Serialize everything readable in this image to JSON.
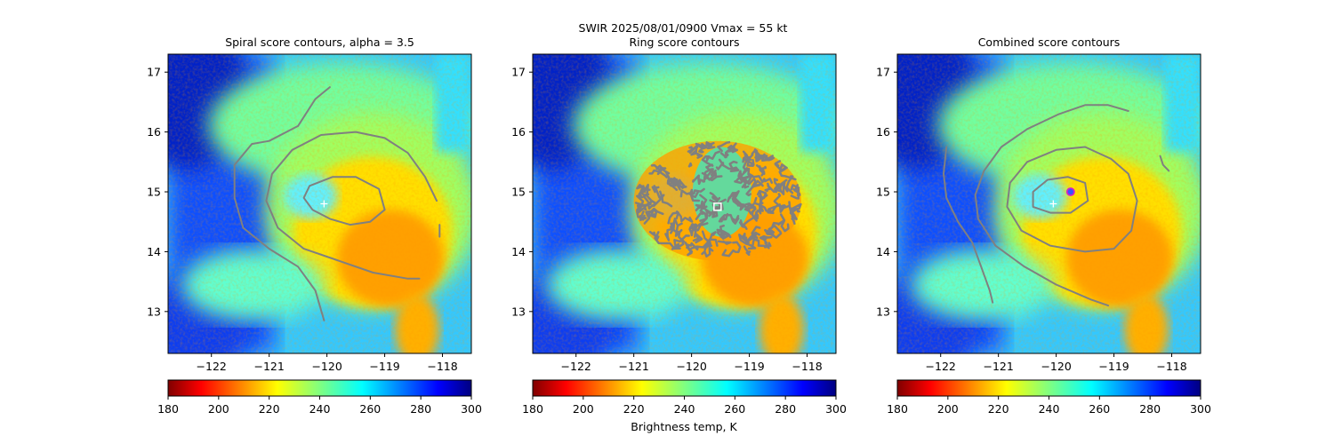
{
  "figure": {
    "suptitle_line1": "SWIR  2025/08/01/0900    Vmax = 55 kt",
    "colorbar_label": "Brightness temp, K"
  },
  "chart_data": [
    {
      "type": "heatmap",
      "title": "Spiral score contours, alpha =  3.5",
      "xlim": [
        -122.75,
        -117.5
      ],
      "ylim": [
        12.3,
        17.3
      ],
      "xticks": [
        -122,
        -121,
        -120,
        -119,
        -118
      ],
      "yticks": [
        13,
        14,
        15,
        16,
        17
      ],
      "center_marker": {
        "symbol": "plus",
        "lon": -120.05,
        "lat": 14.8
      },
      "contours": [
        [
          [
            -119.0,
            14.7
          ],
          [
            -119.1,
            15.05
          ],
          [
            -119.5,
            15.25
          ],
          [
            -119.9,
            15.25
          ],
          [
            -120.3,
            15.1
          ],
          [
            -120.4,
            14.9
          ],
          [
            -120.25,
            14.7
          ],
          [
            -119.95,
            14.55
          ],
          [
            -119.6,
            14.45
          ],
          [
            -119.25,
            14.5
          ],
          [
            -119.0,
            14.7
          ]
        ],
        [
          [
            -118.1,
            14.85
          ],
          [
            -118.3,
            15.25
          ],
          [
            -118.6,
            15.65
          ],
          [
            -119.0,
            15.9
          ],
          [
            -119.5,
            16.0
          ],
          [
            -120.1,
            15.95
          ],
          [
            -120.6,
            15.7
          ],
          [
            -120.95,
            15.3
          ],
          [
            -121.05,
            14.85
          ],
          [
            -120.85,
            14.4
          ],
          [
            -120.4,
            14.05
          ],
          [
            -119.8,
            13.85
          ],
          [
            -119.2,
            13.65
          ],
          [
            -118.6,
            13.55
          ],
          [
            -118.4,
            13.55
          ]
        ],
        [
          [
            -119.95,
            16.75
          ],
          [
            -120.2,
            16.55
          ],
          [
            -120.5,
            16.1
          ],
          [
            -121.0,
            15.85
          ],
          [
            -121.3,
            15.8
          ],
          [
            -121.6,
            15.45
          ],
          [
            -121.6,
            14.9
          ],
          [
            -121.45,
            14.4
          ],
          [
            -121.0,
            14.05
          ],
          [
            -120.5,
            13.75
          ],
          [
            -120.2,
            13.35
          ],
          [
            -120.05,
            12.85
          ]
        ],
        [
          [
            -118.05,
            14.45
          ],
          [
            -118.05,
            14.25
          ]
        ]
      ]
    },
    {
      "type": "heatmap",
      "title": "Ring score contours",
      "xlim": [
        -122.75,
        -117.5
      ],
      "ylim": [
        12.3,
        17.3
      ],
      "xticks": [
        -122,
        -121,
        -120,
        -119,
        -118
      ],
      "yticks": [
        13,
        14,
        15,
        16,
        17
      ],
      "center_marker": {
        "symbol": "square",
        "lon": -119.55,
        "lat": 14.75
      },
      "contour_region": {
        "lon": -119.55,
        "lat": 14.85,
        "rlon": 1.45,
        "rlat": 1.0
      }
    },
    {
      "type": "heatmap",
      "title": "Combined score contours",
      "xlim": [
        -122.75,
        -117.5
      ],
      "ylim": [
        12.3,
        17.3
      ],
      "xticks": [
        -122,
        -121,
        -120,
        -119,
        -118
      ],
      "yticks": [
        13,
        14,
        15,
        16,
        17
      ],
      "center_marker": {
        "symbol": "plus",
        "lon": -120.05,
        "lat": 14.8
      },
      "best_marker": {
        "symbol": "circle",
        "lon": -119.75,
        "lat": 15.0
      },
      "contours": [
        [
          [
            -119.45,
            14.85
          ],
          [
            -119.5,
            15.15
          ],
          [
            -119.8,
            15.25
          ],
          [
            -120.15,
            15.2
          ],
          [
            -120.4,
            15.0
          ],
          [
            -120.4,
            14.75
          ],
          [
            -120.1,
            14.65
          ],
          [
            -119.75,
            14.65
          ],
          [
            -119.45,
            14.85
          ]
        ],
        [
          [
            -118.6,
            14.85
          ],
          [
            -118.75,
            15.3
          ],
          [
            -119.05,
            15.55
          ],
          [
            -119.5,
            15.75
          ],
          [
            -120.0,
            15.7
          ],
          [
            -120.5,
            15.5
          ],
          [
            -120.8,
            15.15
          ],
          [
            -120.85,
            14.75
          ],
          [
            -120.6,
            14.35
          ],
          [
            -120.1,
            14.1
          ],
          [
            -119.5,
            14.0
          ],
          [
            -119.0,
            14.05
          ],
          [
            -118.7,
            14.35
          ],
          [
            -118.6,
            14.85
          ]
        ],
        [
          [
            -118.75,
            16.35
          ],
          [
            -119.1,
            16.45
          ],
          [
            -119.5,
            16.45
          ],
          [
            -119.95,
            16.3
          ],
          [
            -120.5,
            16.05
          ],
          [
            -120.95,
            15.75
          ],
          [
            -121.25,
            15.35
          ],
          [
            -121.4,
            14.95
          ],
          [
            -121.35,
            14.55
          ],
          [
            -121.05,
            14.1
          ],
          [
            -120.55,
            13.75
          ],
          [
            -120.0,
            13.45
          ],
          [
            -119.4,
            13.2
          ],
          [
            -119.1,
            13.1
          ]
        ],
        [
          [
            -121.9,
            15.75
          ],
          [
            -121.95,
            15.3
          ],
          [
            -121.9,
            14.9
          ],
          [
            -121.7,
            14.5
          ],
          [
            -121.45,
            14.15
          ],
          [
            -121.3,
            13.75
          ],
          [
            -121.15,
            13.35
          ],
          [
            -121.1,
            13.15
          ]
        ],
        [
          [
            -118.2,
            15.6
          ],
          [
            -118.15,
            15.45
          ],
          [
            -118.05,
            15.35
          ]
        ]
      ]
    }
  ],
  "colorbar": {
    "min": 180,
    "max": 300,
    "ticks": [
      180,
      200,
      220,
      240,
      260,
      280,
      300
    ],
    "colormap": "jet_r"
  },
  "colors": {
    "contour": "#808080",
    "marker": "#ffffff",
    "best_marker_edge": "#cc22cc",
    "best_marker_fill": "#3355ff"
  }
}
